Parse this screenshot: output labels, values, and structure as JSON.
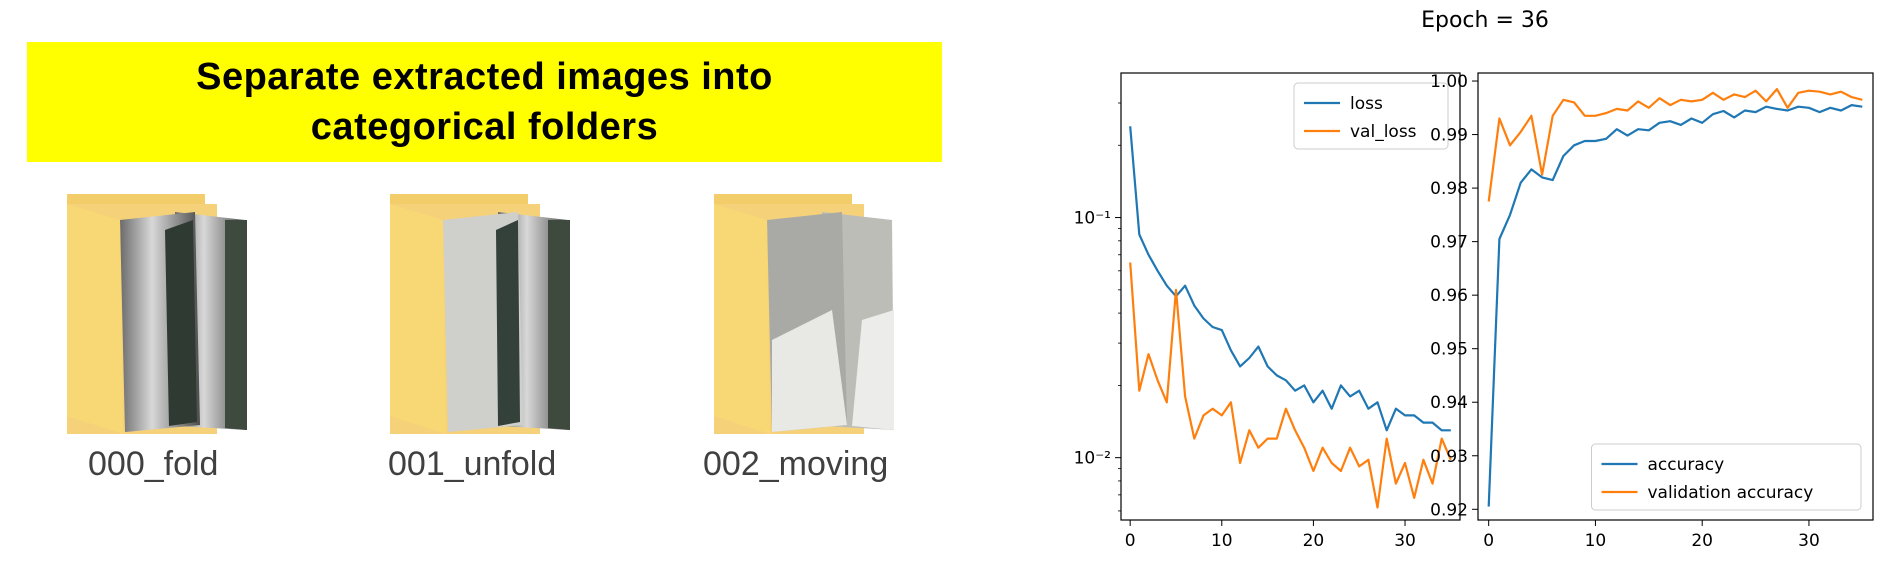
{
  "banner": {
    "text": "Separate extracted images into\ncategorical folders"
  },
  "folders": [
    {
      "label": "000_fold"
    },
    {
      "label": "001_unfold"
    },
    {
      "label": "002_moving"
    }
  ],
  "colors": {
    "banner": "#ffff00",
    "series_blue": "#1f77b4",
    "series_orange": "#ff7f0e",
    "folder": "#f8d775"
  },
  "figure_title": "Epoch = 36",
  "chart_data": [
    {
      "type": "line",
      "yscale": "log",
      "xlim": [
        -1,
        36
      ],
      "ylim": [
        0.0055,
        0.4
      ],
      "xticks": [
        0,
        10,
        20,
        30
      ],
      "yticks": [
        {
          "value": 0.1,
          "label": "10⁻¹"
        },
        {
          "value": 0.01,
          "label": "10⁻²"
        }
      ],
      "legend": "top-right",
      "x": [
        0,
        1,
        2,
        3,
        4,
        5,
        6,
        7,
        8,
        9,
        10,
        11,
        12,
        13,
        14,
        15,
        16,
        17,
        18,
        19,
        20,
        21,
        22,
        23,
        24,
        25,
        26,
        27,
        28,
        29,
        30,
        31,
        32,
        33,
        34,
        35
      ],
      "series": [
        {
          "name": "loss",
          "color": "#1f77b4",
          "values": [
            0.24,
            0.085,
            0.07,
            0.06,
            0.052,
            0.047,
            0.052,
            0.043,
            0.038,
            0.035,
            0.034,
            0.028,
            0.024,
            0.026,
            0.029,
            0.024,
            0.022,
            0.021,
            0.019,
            0.02,
            0.017,
            0.019,
            0.016,
            0.02,
            0.018,
            0.019,
            0.016,
            0.017,
            0.013,
            0.016,
            0.015,
            0.015,
            0.014,
            0.014,
            0.013,
            0.013
          ]
        },
        {
          "name": "val_loss",
          "color": "#ff7f0e",
          "values": [
            0.065,
            0.019,
            0.027,
            0.021,
            0.017,
            0.05,
            0.018,
            0.012,
            0.015,
            0.016,
            0.015,
            0.017,
            0.0095,
            0.013,
            0.011,
            0.012,
            0.012,
            0.016,
            0.013,
            0.011,
            0.0088,
            0.011,
            0.0095,
            0.0088,
            0.011,
            0.0092,
            0.0098,
            0.0062,
            0.012,
            0.0078,
            0.0095,
            0.0068,
            0.0098,
            0.0078,
            0.012,
            0.0098
          ]
        }
      ]
    },
    {
      "type": "line",
      "xlim": [
        -1,
        36
      ],
      "ylim": [
        0.918,
        1.0015
      ],
      "xticks": [
        0,
        10,
        20,
        30
      ],
      "yticks": [
        0.92,
        0.93,
        0.94,
        0.95,
        0.96,
        0.97,
        0.98,
        0.99,
        1.0
      ],
      "legend": "bottom-right",
      "x": [
        0,
        1,
        2,
        3,
        4,
        5,
        6,
        7,
        8,
        9,
        10,
        11,
        12,
        13,
        14,
        15,
        16,
        17,
        18,
        19,
        20,
        21,
        22,
        23,
        24,
        25,
        26,
        27,
        28,
        29,
        30,
        31,
        32,
        33,
        34,
        35
      ],
      "series": [
        {
          "name": "accuracy",
          "color": "#1f77b4",
          "values": [
            0.9205,
            0.9705,
            0.975,
            0.981,
            0.9835,
            0.982,
            0.9815,
            0.986,
            0.988,
            0.9888,
            0.9888,
            0.9892,
            0.991,
            0.9898,
            0.991,
            0.9908,
            0.9922,
            0.9925,
            0.9918,
            0.993,
            0.9922,
            0.9938,
            0.9944,
            0.9932,
            0.9945,
            0.9942,
            0.9952,
            0.9948,
            0.9945,
            0.9952,
            0.995,
            0.9942,
            0.995,
            0.9945,
            0.9955,
            0.9952
          ]
        },
        {
          "name": "validation accuracy",
          "color": "#ff7f0e",
          "values": [
            0.9775,
            0.993,
            0.988,
            0.9905,
            0.9935,
            0.9825,
            0.9935,
            0.9965,
            0.996,
            0.9935,
            0.9935,
            0.994,
            0.9948,
            0.9945,
            0.9962,
            0.995,
            0.9968,
            0.9955,
            0.9965,
            0.9962,
            0.9965,
            0.9978,
            0.9965,
            0.9975,
            0.997,
            0.9982,
            0.9962,
            0.9985,
            0.995,
            0.9978,
            0.9982,
            0.998,
            0.9975,
            0.998,
            0.997,
            0.9965
          ]
        }
      ]
    }
  ]
}
